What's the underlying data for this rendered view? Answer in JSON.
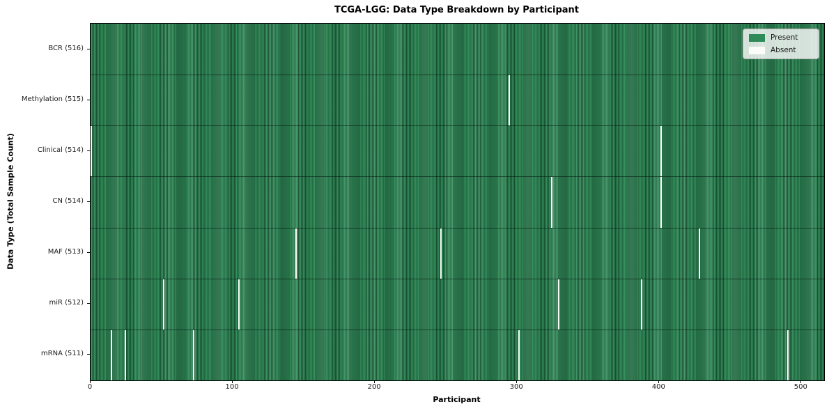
{
  "colors": {
    "present": "#2e8b57",
    "absent": "#fbfbf8",
    "bar_edge": "#0a2e1b",
    "legend_background": "#fafafa",
    "legend_border": "#b3b3b3",
    "axis": "#000000"
  },
  "chart_data": {
    "type": "heatmap",
    "title": "TCGA-LGG: Data Type Breakdown by Participant",
    "xlabel": "Participant",
    "ylabel": "Data Type (Total Sample Count)",
    "legend": {
      "present": "Present",
      "absent": "Absent"
    },
    "legend_position": "upper right",
    "grid": false,
    "x_range": [
      0,
      516
    ],
    "x_ticks": [
      0,
      100,
      200,
      300,
      400,
      500
    ],
    "n_participants": 516,
    "rows": [
      {
        "name": "bcr",
        "label": "BCR (516)",
        "total_present": 516,
        "absent_participants": []
      },
      {
        "name": "methylation",
        "label": "Methylation (515)",
        "total_present": 515,
        "absent_participants": [
          294
        ]
      },
      {
        "name": "clinical",
        "label": "Clinical (514)",
        "total_present": 514,
        "absent_participants": [
          0,
          401
        ]
      },
      {
        "name": "cn",
        "label": "CN (514)",
        "total_present": 514,
        "absent_participants": [
          324,
          401
        ]
      },
      {
        "name": "maf",
        "label": "MAF (513)",
        "total_present": 513,
        "absent_participants": [
          144,
          246,
          428
        ]
      },
      {
        "name": "mir",
        "label": "miR (512)",
        "total_present": 512,
        "absent_participants": [
          51,
          104,
          329,
          387
        ]
      },
      {
        "name": "mrna",
        "label": "mRNA (511)",
        "total_present": 511,
        "absent_participants": [
          14,
          24,
          72,
          301,
          490
        ]
      }
    ]
  }
}
